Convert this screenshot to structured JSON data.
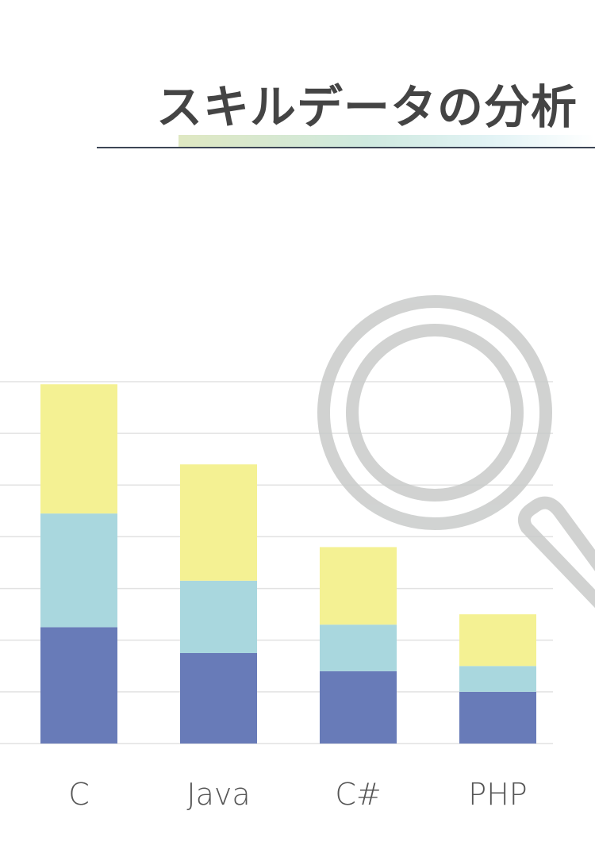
{
  "header": {
    "title": "スキルデータの分析"
  },
  "decoration": {
    "icon": "magnifier-icon",
    "icon_color": "#c9cbca"
  },
  "chart_data": {
    "type": "bar",
    "stacked": true,
    "categories": [
      "C",
      "Java",
      "C#",
      "PHP"
    ],
    "series": [
      {
        "values": [
          2.25,
          1.75,
          1.4,
          1.0
        ],
        "color": "#687bb8"
      },
      {
        "values": [
          2.2,
          1.4,
          0.9,
          0.5
        ],
        "color": "#a9d7de"
      },
      {
        "values": [
          2.5,
          2.25,
          1.5,
          1.0
        ],
        "color": "#f4f193"
      }
    ],
    "ylim": [
      0,
      7
    ],
    "grid": true,
    "gridline_color": "#e2e2e2",
    "legend": "none",
    "title": "",
    "xlabel": "",
    "ylabel": ""
  }
}
